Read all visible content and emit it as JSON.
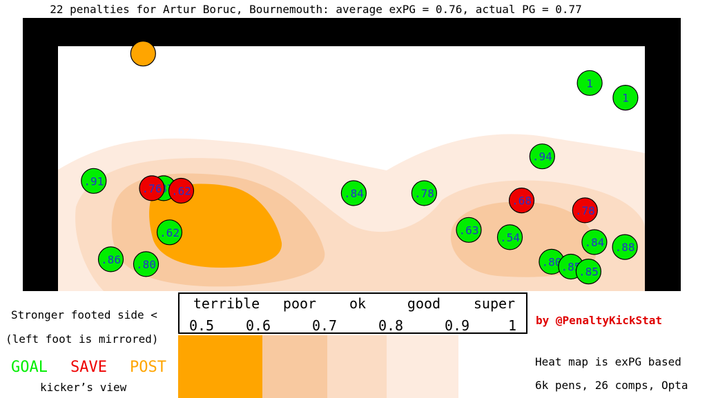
{
  "title": "22 penalties for Artur Boruc, Bournemouth: average exPG = 0.76, actual PG = 0.77",
  "legend": {
    "qualities": [
      "terrible",
      "poor",
      "ok",
      "good",
      "super"
    ],
    "scale": [
      "0.5",
      "0.6",
      "0.7",
      "0.8",
      "0.9",
      "1"
    ],
    "colors": [
      "#ffa500",
      "#f8c9a0",
      "#fbdcc4",
      "#fdebdf",
      "#ffffff"
    ]
  },
  "side_note": {
    "line1": "Stronger footed side <",
    "line2": "(left foot is mirrored)"
  },
  "outcomes": {
    "goal": "GOAL",
    "save": "SAVE",
    "post": "POST",
    "colors": {
      "goal": "#00ee00",
      "save": "#ee0000",
      "post": "#ffa500"
    }
  },
  "view_label": "kicker’s view",
  "author": "by @PenaltyKickStat",
  "footnote": {
    "line1": "Heat map is exPG based",
    "line2": "6k pens, 26 comps, Opta"
  },
  "chart_data": {
    "type": "scatter",
    "title": "22 penalties for Artur Boruc, Bournemouth: average exPG = 0.76, actual PG = 0.77",
    "xlabel": "",
    "ylabel": "",
    "xlim": [
      0,
      1
    ],
    "ylim": [
      0,
      1
    ],
    "axes_shown": false,
    "points": [
      {
        "x": 0.145,
        "y": 0.97,
        "label": "",
        "outcome": "post"
      },
      {
        "x": 0.906,
        "y": 0.85,
        "label": "1",
        "outcome": "goal"
      },
      {
        "x": 0.967,
        "y": 0.79,
        "label": "1",
        "outcome": "goal"
      },
      {
        "x": 0.825,
        "y": 0.55,
        "label": ".94",
        "outcome": "goal"
      },
      {
        "x": 0.061,
        "y": 0.45,
        "label": ".91",
        "outcome": "goal"
      },
      {
        "x": 0.18,
        "y": 0.42,
        "label": ".87",
        "outcome": "goal"
      },
      {
        "x": 0.16,
        "y": 0.42,
        "label": ".76",
        "outcome": "save"
      },
      {
        "x": 0.21,
        "y": 0.41,
        "label": ".62",
        "outcome": "save"
      },
      {
        "x": 0.504,
        "y": 0.4,
        "label": ".84",
        "outcome": "goal"
      },
      {
        "x": 0.624,
        "y": 0.4,
        "label": ".78",
        "outcome": "goal"
      },
      {
        "x": 0.79,
        "y": 0.37,
        "label": ".68",
        "outcome": "save"
      },
      {
        "x": 0.898,
        "y": 0.33,
        "label": ".78",
        "outcome": "save"
      },
      {
        "x": 0.7,
        "y": 0.25,
        "label": ".63",
        "outcome": "goal"
      },
      {
        "x": 0.19,
        "y": 0.24,
        "label": ".62",
        "outcome": "goal"
      },
      {
        "x": 0.77,
        "y": 0.22,
        "label": ".54",
        "outcome": "goal"
      },
      {
        "x": 0.914,
        "y": 0.2,
        "label": ".84",
        "outcome": "goal"
      },
      {
        "x": 0.966,
        "y": 0.18,
        "label": ".88",
        "outcome": "goal"
      },
      {
        "x": 0.09,
        "y": 0.13,
        "label": ".86",
        "outcome": "goal"
      },
      {
        "x": 0.15,
        "y": 0.11,
        "label": ".80",
        "outcome": "goal"
      },
      {
        "x": 0.841,
        "y": 0.12,
        "label": ".80",
        "outcome": "goal"
      },
      {
        "x": 0.874,
        "y": 0.1,
        "label": ".85",
        "outcome": "goal"
      },
      {
        "x": 0.904,
        "y": 0.08,
        "label": ".85",
        "outcome": "goal"
      }
    ]
  }
}
